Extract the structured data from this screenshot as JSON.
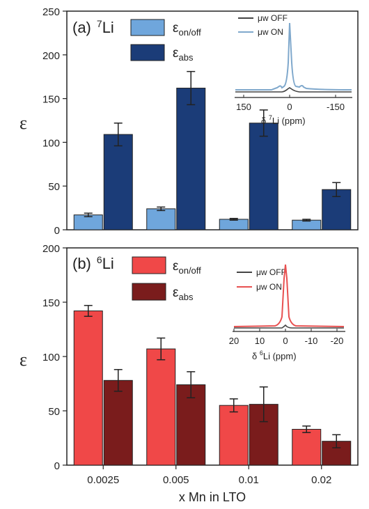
{
  "figure": {
    "xlabel": "x Mn in LTO",
    "categories": [
      "0.0025",
      "0.005",
      "0.01",
      "0.02"
    ]
  },
  "panels": [
    {
      "label": "(a)",
      "nucleus_mass": "7",
      "nucleus": "Li",
      "ylabel": "ε",
      "ylim": [
        0,
        250
      ],
      "yticks": [
        "0",
        "50",
        "100",
        "150",
        "200",
        "250"
      ],
      "legend": [
        {
          "symbol": "ε",
          "sub": "on/off",
          "color": "#6fa6dc"
        },
        {
          "symbol": "ε",
          "sub": "abs",
          "color": "#1b3c78"
        }
      ],
      "inset": {
        "legend": [
          "μw OFF",
          "μw ON"
        ],
        "colors": {
          "off": "#444444",
          "on": "#7fa8cc"
        },
        "xticks": [
          "150",
          "0",
          "-150"
        ],
        "xlabel_prefix": "δ ",
        "xlabel_mass": "7",
        "xlabel_rest": "Li (ppm)"
      }
    },
    {
      "label": "(b)",
      "nucleus_mass": "6",
      "nucleus": "Li",
      "ylabel": "ε",
      "ylim": [
        0,
        200
      ],
      "yticks": [
        "0",
        "50",
        "100",
        "150",
        "200"
      ],
      "legend": [
        {
          "symbol": "ε",
          "sub": "on/off",
          "color": "#f04848"
        },
        {
          "symbol": "ε",
          "sub": "abs",
          "color": "#7a1c1c"
        }
      ],
      "inset": {
        "legend": [
          "μw OFF",
          "μw ON"
        ],
        "colors": {
          "off": "#444444",
          "on": "#e85050"
        },
        "xticks": [
          "20",
          "10",
          "0",
          "-10",
          "-20"
        ],
        "xlabel_prefix": "δ ",
        "xlabel_mass": "6",
        "xlabel_rest": "Li (ppm)"
      }
    }
  ],
  "chart_data": [
    {
      "type": "bar",
      "categories": [
        "0.0025",
        "0.005",
        "0.01",
        "0.02"
      ],
      "xlabel": "x Mn in LTO",
      "ylabel": "ε",
      "ylim": [
        0,
        250
      ],
      "series": [
        {
          "name": "εon/off",
          "color": "#6fa6dc",
          "values": [
            17,
            24,
            12,
            11
          ],
          "errors": [
            2,
            2,
            1,
            1
          ]
        },
        {
          "name": "εabs",
          "color": "#1b3c78",
          "values": [
            109,
            162,
            122,
            46
          ],
          "errors": [
            13,
            19,
            15,
            8
          ]
        }
      ]
    },
    {
      "type": "bar",
      "categories": [
        "0.0025",
        "0.005",
        "0.01",
        "0.02"
      ],
      "xlabel": "x Mn in LTO",
      "ylabel": "ε",
      "ylim": [
        0,
        200
      ],
      "series": [
        {
          "name": "εon/off",
          "color": "#f04848",
          "values": [
            142,
            107,
            55,
            33
          ],
          "errors": [
            5,
            10,
            6,
            3
          ]
        },
        {
          "name": "εabs",
          "color": "#7a1c1c",
          "values": [
            78,
            74,
            56,
            22
          ],
          "errors": [
            10,
            12,
            16,
            6
          ]
        }
      ]
    }
  ]
}
